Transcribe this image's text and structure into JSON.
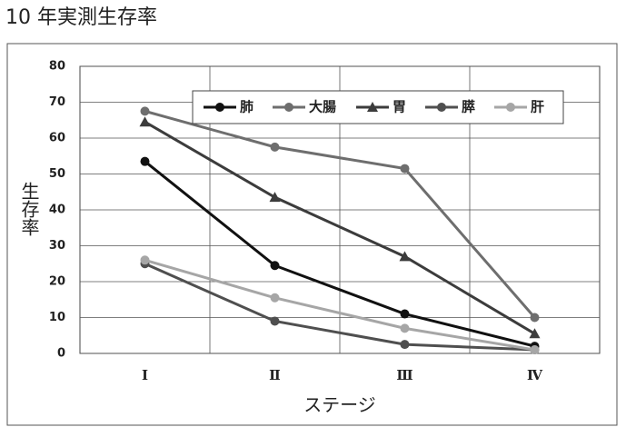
{
  "chart_data": {
    "type": "line",
    "title": "10 年実測生存率",
    "x_label": "ステージ",
    "y_label": "生存率",
    "categories": [
      "Ⅰ",
      "Ⅱ",
      "Ⅲ",
      "Ⅳ"
    ],
    "series": [
      {
        "name": "肺",
        "color": "#111111",
        "marker": "circle",
        "values": [
          53.5,
          24.5,
          11,
          2
        ]
      },
      {
        "name": "大腸",
        "color": "#6e6e6e",
        "marker": "circle",
        "values": [
          67.5,
          57.5,
          51.5,
          10
        ]
      },
      {
        "name": "胃",
        "color": "#3c3c3c",
        "marker": "triangle",
        "values": [
          64.5,
          43.5,
          27,
          5.5
        ]
      },
      {
        "name": "膵",
        "color": "#4f4f4f",
        "marker": "circle",
        "values": [
          25,
          9,
          2.5,
          1
        ]
      },
      {
        "name": "肝",
        "color": "#a6a6a6",
        "marker": "circle",
        "values": [
          26,
          15.5,
          7,
          1
        ]
      }
    ],
    "ylim": [
      0,
      80
    ],
    "yticks": [
      0,
      10,
      20,
      30,
      40,
      50,
      60,
      70,
      80
    ],
    "grid": true,
    "legend": "upper right"
  }
}
